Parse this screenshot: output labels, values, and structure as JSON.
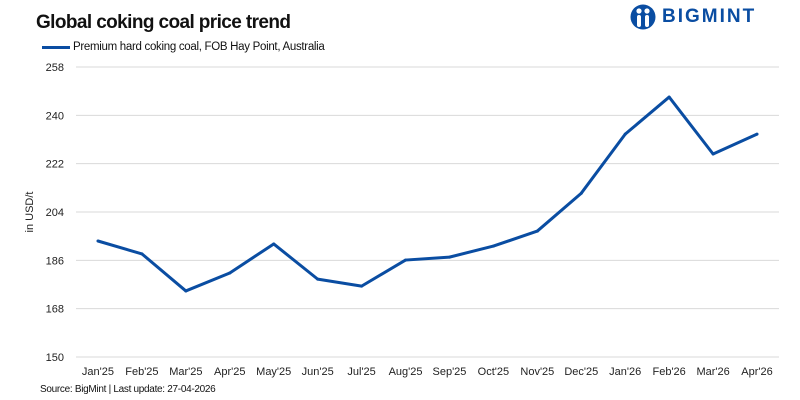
{
  "chart_data": {
    "type": "line",
    "title": "Global coking coal price trend",
    "ylabel": "in USD/t",
    "xlabel": "",
    "ylim": [
      150,
      258
    ],
    "yticks": [
      150,
      168,
      186,
      204,
      222,
      240,
      258
    ],
    "grid": true,
    "legend_position": "top-left",
    "categories": [
      "Jan'25",
      "Feb'25",
      "Mar'25",
      "Apr'25",
      "May'25",
      "Jun'25",
      "Jul'25",
      "Aug'25",
      "Sep'25",
      "Oct'25",
      "Nov'25",
      "Dec'25",
      "Jan'26",
      "Feb'26",
      "Mar'26",
      "Apr'26"
    ],
    "series": [
      {
        "name": "Premium hard coking coal, FOB Hay Point, Australia",
        "color": "#0a4da2",
        "values": [
          193.2,
          188.4,
          174.6,
          181.3,
          192.1,
          179.0,
          176.4,
          186.1,
          187.2,
          191.3,
          196.9,
          211.0,
          233.0,
          246.8,
          225.6,
          233.0
        ]
      }
    ]
  },
  "source": "Source: BigMint | Last update: 27-04-2026",
  "logo": {
    "text": "BIGMINT",
    "color": "#0a4da2"
  }
}
